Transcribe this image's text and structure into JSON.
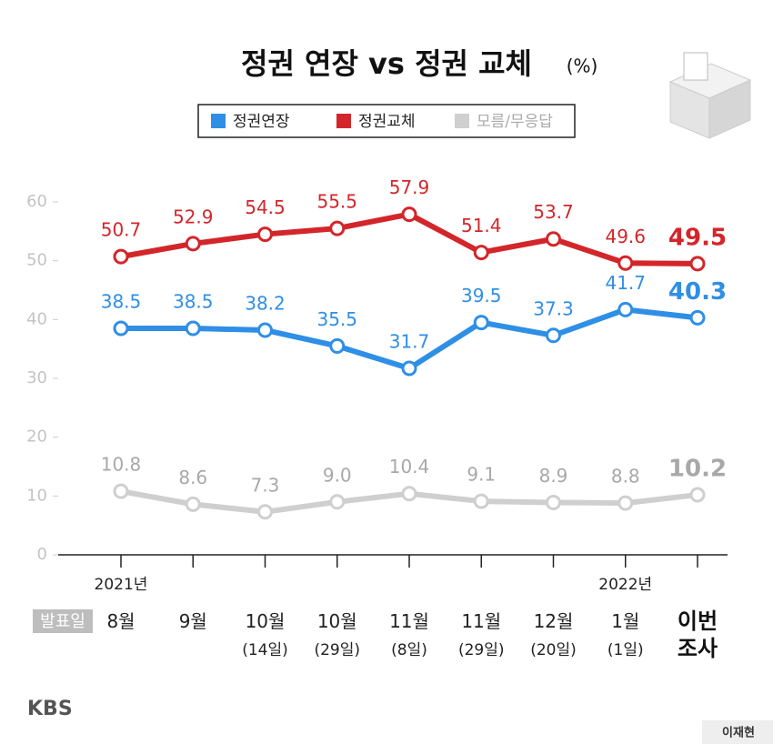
{
  "chart_data": {
    "type": "line",
    "title": "정권 연장 vs 정권 교체",
    "unit": "(%)",
    "date_label": "발표일",
    "source": "KBS",
    "credit": "이재현",
    "categories": [
      "8월",
      "9월",
      "10월",
      "10월",
      "11월",
      "11월",
      "12월",
      "1월",
      "이번\n조사"
    ],
    "category_sublabels": [
      null,
      null,
      "(14일)",
      "(29일)",
      "(8일)",
      "(29일)",
      "(20일)",
      "(1일)",
      null
    ],
    "year_labels": [
      "2021년",
      null,
      null,
      null,
      null,
      null,
      null,
      "2022년",
      null
    ],
    "series": [
      {
        "name": "정권연장",
        "color": "#2f8fe6",
        "values": [
          38.5,
          38.5,
          38.2,
          35.5,
          31.7,
          39.5,
          37.3,
          41.7,
          40.3
        ]
      },
      {
        "name": "정권교체",
        "color": "#d3262a",
        "values": [
          50.7,
          52.9,
          54.5,
          55.5,
          57.9,
          51.4,
          53.7,
          49.6,
          49.5
        ]
      },
      {
        "name": "모름/무응답",
        "color": "#cfcfcf",
        "values": [
          10.8,
          8.6,
          7.3,
          9.0,
          10.4,
          9.1,
          8.9,
          8.8,
          10.2
        ],
        "value_labels": [
          "10.8",
          "8.6",
          "7.3",
          "9.0",
          "10.4",
          "9.1",
          "8.9",
          "8.8",
          "10.2"
        ]
      }
    ],
    "ylim": [
      0,
      60
    ],
    "yticks": [
      0,
      10,
      20,
      30,
      40,
      50,
      60
    ],
    "grid": false
  }
}
